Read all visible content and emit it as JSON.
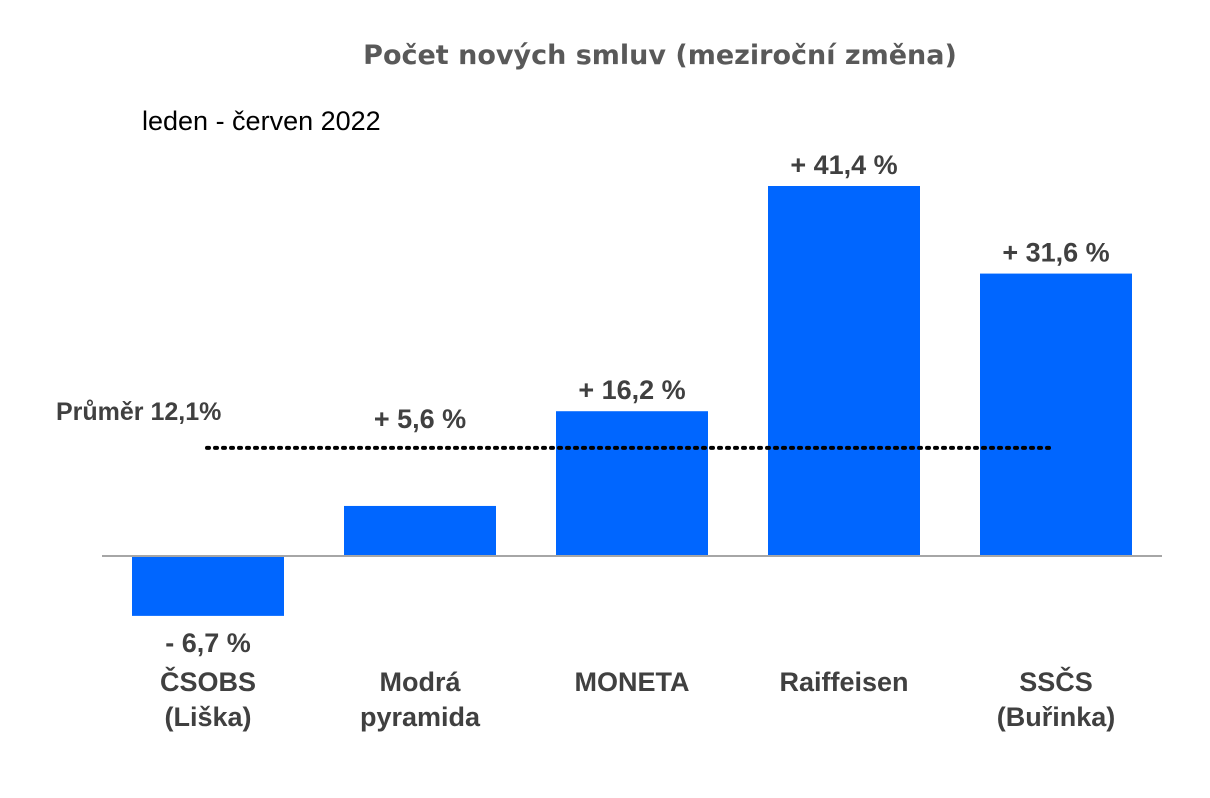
{
  "chart_data": {
    "type": "bar",
    "title": "Počet nových smluv (meziroční změna)",
    "subtitle": "leden - červen 2022",
    "categories": [
      [
        "ČSOBS",
        "(Liška)"
      ],
      [
        "Modrá",
        "pyramida"
      ],
      [
        "MONETA"
      ],
      [
        "Raiffeisen"
      ],
      [
        "SSČS",
        "(Buřinka)"
      ]
    ],
    "values": [
      -6.7,
      5.6,
      16.2,
      41.4,
      31.6
    ],
    "data_labels": [
      "- 6,7 %",
      "+ 5,6 %",
      "+ 16,2 %",
      "+ 41,4 %",
      "+ 31,6 %"
    ],
    "reference_line": {
      "label": "Průměr 12,1%",
      "value": 12.1,
      "style": "dotted"
    },
    "ylim": [
      -10,
      45
    ],
    "grid": false,
    "bar_color": "#0066FF"
  }
}
